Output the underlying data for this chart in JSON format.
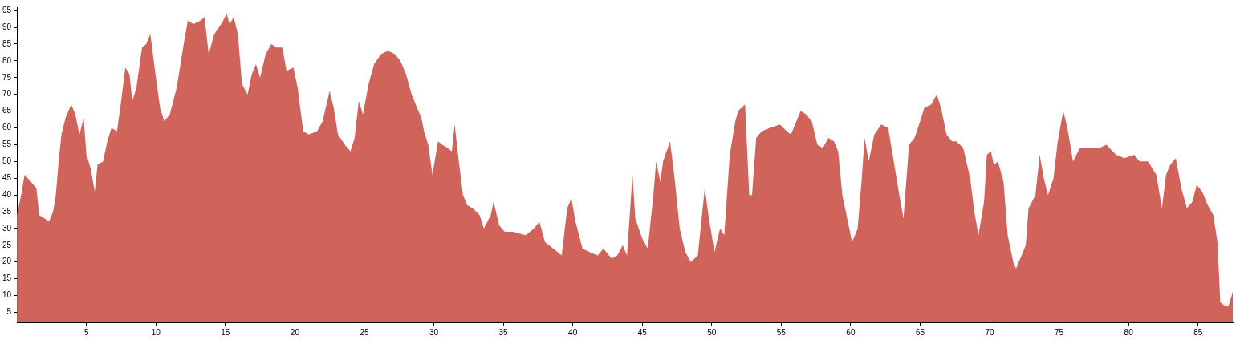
{
  "chart_data": {
    "type": "area",
    "color": "#d0635a",
    "x": [
      0,
      0.3,
      0.55,
      1,
      1.4,
      1.6,
      2,
      2.3,
      2.6,
      2.8,
      3,
      3.2,
      3.5,
      3.9,
      4.2,
      4.5,
      4.8,
      5,
      5.3,
      5.6,
      5.8,
      6.2,
      6.5,
      6.8,
      7.2,
      7.5,
      7.8,
      8.1,
      8.3,
      8.6,
      9,
      9.3,
      9.6,
      10,
      10.3,
      10.6,
      11,
      11.5,
      12,
      12.3,
      12.7,
      13.2,
      13.5,
      13.8,
      14.2,
      14.7,
      15.1,
      15.3,
      15.6,
      15.9,
      16.2,
      16.6,
      16.9,
      17.2,
      17.5,
      17.9,
      18.3,
      18.7,
      19.1,
      19.4,
      19.9,
      20.2,
      20.6,
      21,
      21.6,
      22,
      22.5,
      22.8,
      23.1,
      23.6,
      24,
      24.3,
      24.6,
      24.9,
      25.3,
      25.7,
      26.2,
      26.7,
      27.2,
      27.6,
      28,
      28.4,
      28.8,
      29.1,
      29.3,
      29.6,
      29.9,
      30.3,
      30.6,
      31,
      31.3,
      31.5,
      31.8,
      32.1,
      32.4,
      32.8,
      33.3,
      33.6,
      34.1,
      34.3,
      34.7,
      35.1,
      35.7,
      36.6,
      37.2,
      37.6,
      38,
      38.6,
      39.2,
      39.6,
      39.9,
      40.2,
      40.7,
      41.2,
      41.8,
      42.2,
      42.8,
      43.2,
      43.6,
      43.9,
      44.3,
      44.5,
      45,
      45.4,
      45.8,
      46,
      46.3,
      46.5,
      47,
      47.3,
      47.7,
      48.1,
      48.5,
      49,
      49.4,
      49.5,
      49.8,
      50.2,
      50.6,
      50.9,
      51.3,
      51.7,
      51.9,
      52.4,
      52.7,
      52.9,
      53.2,
      53.6,
      54.2,
      54.9,
      55.4,
      55.7,
      56.1,
      56.4,
      56.8,
      57.2,
      57.6,
      58,
      58.4,
      58.8,
      59.1,
      59.4,
      59.9,
      60.1,
      60.5,
      60.8,
      61,
      61.3,
      61.7,
      62.2,
      62.7,
      63.1,
      63.5,
      63.8,
      64.2,
      64.6,
      65,
      65.3,
      65.8,
      66.2,
      66.5,
      66.9,
      67.3,
      67.6,
      68.1,
      68.6,
      68.9,
      69.2,
      69.6,
      69.8,
      70.1,
      70.3,
      70.6,
      71,
      71.3,
      71.7,
      71.9,
      72.3,
      72.6,
      72.8,
      73.3,
      73.6,
      73.9,
      74.2,
      74.6,
      74.9,
      75.3,
      75.6,
      76,
      76.5,
      77.1,
      77.9,
      78.4,
      79.1,
      79.7,
      80.4,
      80.8,
      81.4,
      82,
      82.4,
      82.7,
      83,
      83.4,
      83.8,
      84.2,
      84.6,
      84.9,
      85.3,
      85.7,
      86.1,
      86.4,
      86.6,
      86.9,
      87.2,
      87.5
    ],
    "values": [
      34,
      40,
      46,
      44,
      42,
      34,
      33,
      32,
      35,
      40,
      50,
      58,
      63,
      67,
      64,
      58,
      63,
      52,
      48,
      41,
      49,
      50,
      56,
      60,
      59,
      68,
      78,
      76,
      68,
      72,
      84,
      85,
      88,
      75,
      66,
      62,
      64,
      72,
      85,
      92,
      91,
      92,
      93,
      82,
      88,
      91,
      94,
      91,
      93,
      88,
      73,
      70,
      76,
      79,
      75,
      82,
      85,
      84,
      84,
      77,
      78,
      72,
      59,
      58,
      59,
      62,
      71,
      66,
      58,
      55,
      53,
      57,
      68,
      64,
      73,
      79,
      82,
      83,
      82,
      80,
      76,
      70,
      66,
      63,
      59,
      55,
      46,
      56,
      55,
      54,
      53,
      61,
      50,
      40,
      37,
      36,
      34,
      30,
      34,
      38,
      31,
      29,
      29,
      28,
      30,
      32,
      26,
      24,
      22,
      36,
      39,
      32,
      24,
      23,
      22,
      24,
      21,
      22,
      25,
      22,
      46,
      33,
      27,
      24,
      40,
      50,
      44,
      50,
      56,
      46,
      30,
      23,
      20,
      22,
      38,
      42,
      33,
      23,
      30,
      28,
      52,
      62,
      65,
      67,
      40,
      40,
      57,
      59,
      60,
      61,
      59,
      58,
      62,
      65,
      64,
      62,
      55,
      54,
      57,
      56,
      53,
      40,
      30,
      26,
      30,
      45,
      57,
      50,
      58,
      61,
      60,
      50,
      40,
      33,
      55,
      57,
      62,
      66,
      67,
      70,
      66,
      58,
      56,
      56,
      54,
      45,
      35,
      28,
      38,
      52,
      53,
      49,
      50,
      44,
      28,
      20,
      18,
      22,
      25,
      36,
      40,
      52,
      45,
      40,
      45,
      56,
      65,
      60,
      50,
      54,
      54,
      54,
      55,
      52,
      51,
      52,
      50,
      50,
      46,
      36,
      46,
      49,
      51,
      42,
      36,
      38,
      43,
      41,
      37,
      34,
      26,
      8,
      7,
      7,
      11
    ],
    "xlim": [
      0,
      87.5
    ],
    "xticks": [
      5,
      10,
      15,
      20,
      25,
      30,
      35,
      40,
      45,
      50,
      55,
      60,
      65,
      70,
      75,
      80,
      85
    ],
    "ylim": [
      2,
      96
    ],
    "yticks": [
      5,
      10,
      15,
      20,
      25,
      30,
      35,
      40,
      45,
      50,
      55,
      60,
      65,
      70,
      75,
      80,
      85,
      90,
      95
    ]
  }
}
